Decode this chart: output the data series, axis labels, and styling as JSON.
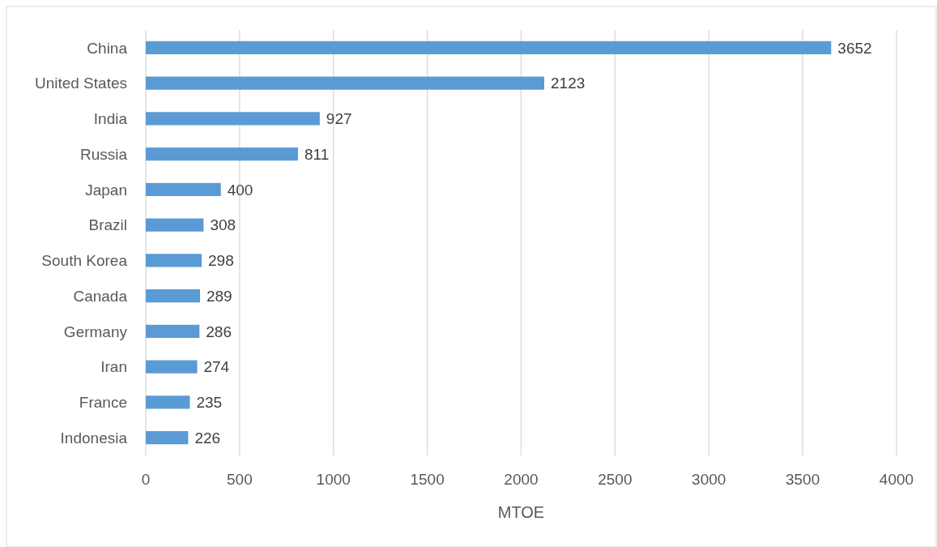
{
  "chart_data": {
    "type": "bar",
    "orientation": "horizontal",
    "xlabel": "MTOE",
    "categories": [
      "China",
      "United States",
      "India",
      "Russia",
      "Japan",
      "Brazil",
      "South Korea",
      "Canada",
      "Germany",
      "Iran",
      "France",
      "Indonesia"
    ],
    "values": [
      3652,
      2123,
      927,
      811,
      400,
      308,
      298,
      289,
      286,
      274,
      235,
      226
    ],
    "color": "#5b9bd5",
    "xlim": [
      0,
      4000
    ],
    "xticks": [
      0,
      500,
      1000,
      1500,
      2000,
      2500,
      3000,
      3500,
      4000
    ],
    "grid": "x",
    "data_labels": true
  }
}
